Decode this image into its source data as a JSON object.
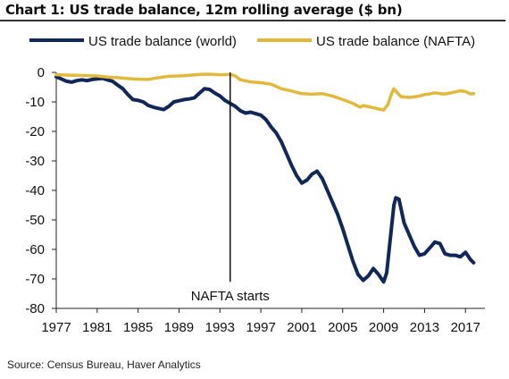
{
  "title": "Chart 1: US trade balance, 12m rolling average ($ bn)",
  "source": "Source: Census Bureau, Haver Analytics",
  "colors": {
    "world": "#10275a",
    "nafta": "#e2b93b",
    "axis": "#222222",
    "marker": "#111111"
  },
  "chart_data": {
    "type": "line",
    "title": "Chart 1: US trade balance, 12m rolling average ($ bn)",
    "xlabel": "",
    "ylabel": "",
    "xlim": [
      1977,
      2018.2
    ],
    "ylim": [
      -80,
      0
    ],
    "x_ticks": [
      1977,
      1981,
      1985,
      1989,
      1993,
      1997,
      2001,
      2005,
      2009,
      2013,
      2017
    ],
    "y_ticks": [
      0,
      -10,
      -20,
      -30,
      -40,
      -50,
      -60,
      -70,
      -80
    ],
    "grid": false,
    "legend": "top",
    "annotations": [
      {
        "text": "NAFTA starts",
        "x": 1994.0
      }
    ],
    "series": [
      {
        "name": "US trade balance (world)",
        "color": "#10275a",
        "points": [
          [
            1977.0,
            -1.5
          ],
          [
            1977.5,
            -2.2
          ],
          [
            1978.0,
            -3.0
          ],
          [
            1978.5,
            -3.3
          ],
          [
            1979.0,
            -2.8
          ],
          [
            1979.5,
            -2.5
          ],
          [
            1980.0,
            -2.8
          ],
          [
            1980.5,
            -2.4
          ],
          [
            1981.0,
            -2.2
          ],
          [
            1981.5,
            -2.0
          ],
          [
            1982.0,
            -2.5
          ],
          [
            1982.5,
            -3.0
          ],
          [
            1983.0,
            -4.3
          ],
          [
            1983.5,
            -5.5
          ],
          [
            1984.0,
            -7.5
          ],
          [
            1984.5,
            -9.2
          ],
          [
            1985.0,
            -9.5
          ],
          [
            1985.5,
            -10.0
          ],
          [
            1986.0,
            -11.2
          ],
          [
            1986.5,
            -11.8
          ],
          [
            1987.0,
            -12.2
          ],
          [
            1987.5,
            -12.6
          ],
          [
            1988.0,
            -11.5
          ],
          [
            1988.5,
            -10.0
          ],
          [
            1989.0,
            -9.6
          ],
          [
            1989.5,
            -9.2
          ],
          [
            1990.0,
            -9.0
          ],
          [
            1990.5,
            -8.6
          ],
          [
            1991.0,
            -7.0
          ],
          [
            1991.5,
            -5.5
          ],
          [
            1992.0,
            -5.8
          ],
          [
            1992.5,
            -7.0
          ],
          [
            1993.0,
            -8.0
          ],
          [
            1993.5,
            -9.5
          ],
          [
            1994.0,
            -10.5
          ],
          [
            1994.5,
            -11.5
          ],
          [
            1995.0,
            -13.0
          ],
          [
            1995.5,
            -13.8
          ],
          [
            1996.0,
            -13.5
          ],
          [
            1996.5,
            -14.0
          ],
          [
            1997.0,
            -14.5
          ],
          [
            1997.5,
            -16.0
          ],
          [
            1998.0,
            -18.5
          ],
          [
            1998.5,
            -20.5
          ],
          [
            1999.0,
            -23.5
          ],
          [
            1999.5,
            -27.5
          ],
          [
            2000.0,
            -31.5
          ],
          [
            2000.5,
            -35.0
          ],
          [
            2001.0,
            -37.5
          ],
          [
            2001.5,
            -36.5
          ],
          [
            2002.0,
            -34.5
          ],
          [
            2002.5,
            -33.5
          ],
          [
            2003.0,
            -36.0
          ],
          [
            2003.5,
            -40.0
          ],
          [
            2004.0,
            -44.0
          ],
          [
            2004.5,
            -48.0
          ],
          [
            2005.0,
            -53.0
          ],
          [
            2005.5,
            -58.5
          ],
          [
            2006.0,
            -64.0
          ],
          [
            2006.5,
            -68.5
          ],
          [
            2007.0,
            -70.5
          ],
          [
            2007.5,
            -69.0
          ],
          [
            2008.0,
            -66.5
          ],
          [
            2008.5,
            -68.5
          ],
          [
            2009.0,
            -71.0
          ],
          [
            2009.3,
            -68.0
          ],
          [
            2009.6,
            -58.0
          ],
          [
            2010.0,
            -45.0
          ],
          [
            2010.2,
            -42.5
          ],
          [
            2010.5,
            -43.0
          ],
          [
            2011.0,
            -51.0
          ],
          [
            2011.5,
            -55.0
          ],
          [
            2012.0,
            -59.0
          ],
          [
            2012.5,
            -62.0
          ],
          [
            2013.0,
            -61.5
          ],
          [
            2013.5,
            -59.5
          ],
          [
            2014.0,
            -57.5
          ],
          [
            2014.5,
            -58.0
          ],
          [
            2015.0,
            -61.5
          ],
          [
            2015.5,
            -62.0
          ],
          [
            2016.0,
            -62.0
          ],
          [
            2016.5,
            -62.5
          ],
          [
            2017.0,
            -61.0
          ],
          [
            2017.5,
            -63.5
          ],
          [
            2017.8,
            -64.5
          ]
        ]
      },
      {
        "name": "US trade balance (NAFTA)",
        "color": "#e2b93b",
        "points": [
          [
            1977.0,
            -0.8
          ],
          [
            1978.0,
            -0.9
          ],
          [
            1979.0,
            -1.0
          ],
          [
            1980.0,
            -1.1
          ],
          [
            1981.0,
            -1.2
          ],
          [
            1982.0,
            -1.6
          ],
          [
            1983.0,
            -1.8
          ],
          [
            1984.0,
            -2.1
          ],
          [
            1985.0,
            -2.3
          ],
          [
            1986.0,
            -2.4
          ],
          [
            1987.0,
            -1.8
          ],
          [
            1988.0,
            -1.3
          ],
          [
            1989.0,
            -1.2
          ],
          [
            1990.0,
            -1.0
          ],
          [
            1991.0,
            -0.7
          ],
          [
            1992.0,
            -0.6
          ],
          [
            1993.0,
            -0.8
          ],
          [
            1994.0,
            -0.7
          ],
          [
            1994.5,
            -1.2
          ],
          [
            1995.0,
            -2.5
          ],
          [
            1996.0,
            -3.2
          ],
          [
            1997.0,
            -3.5
          ],
          [
            1998.0,
            -4.0
          ],
          [
            1999.0,
            -5.5
          ],
          [
            2000.0,
            -6.3
          ],
          [
            2001.0,
            -7.2
          ],
          [
            2002.0,
            -7.4
          ],
          [
            2003.0,
            -7.2
          ],
          [
            2004.0,
            -8.0
          ],
          [
            2005.0,
            -9.2
          ],
          [
            2006.0,
            -10.5
          ],
          [
            2006.7,
            -11.8
          ],
          [
            2007.0,
            -11.2
          ],
          [
            2008.0,
            -12.0
          ],
          [
            2009.0,
            -12.8
          ],
          [
            2009.4,
            -11.0
          ],
          [
            2009.8,
            -7.0
          ],
          [
            2010.0,
            -5.5
          ],
          [
            2010.3,
            -6.8
          ],
          [
            2010.7,
            -8.2
          ],
          [
            2011.5,
            -8.5
          ],
          [
            2012.0,
            -8.3
          ],
          [
            2012.5,
            -8.0
          ],
          [
            2013.0,
            -7.5
          ],
          [
            2013.5,
            -7.3
          ],
          [
            2014.0,
            -6.9
          ],
          [
            2014.5,
            -7.2
          ],
          [
            2015.0,
            -7.3
          ],
          [
            2015.5,
            -7.0
          ],
          [
            2016.0,
            -6.6
          ],
          [
            2016.5,
            -6.2
          ],
          [
            2017.0,
            -6.5
          ],
          [
            2017.5,
            -7.3
          ],
          [
            2017.8,
            -7.2
          ]
        ]
      }
    ]
  }
}
